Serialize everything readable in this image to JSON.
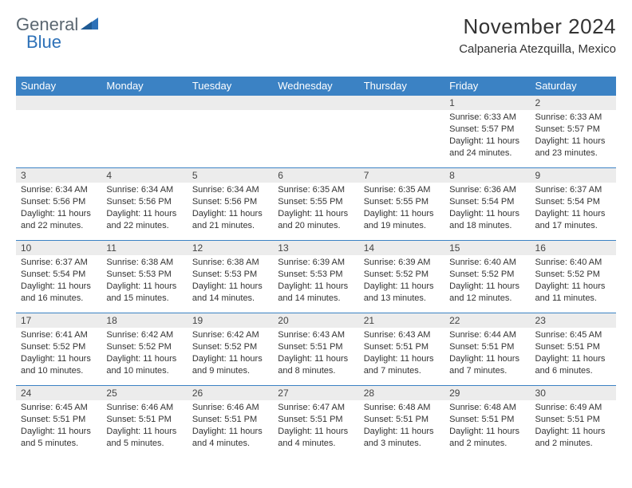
{
  "brand": {
    "word1": "General",
    "word2": "Blue"
  },
  "title": "November 2024",
  "location": "Calpaneria Atezquilla, Mexico",
  "colors": {
    "header_bg": "#3b82c4",
    "header_text": "#ffffff",
    "daynum_bg": "#ececec",
    "grid_line": "#3b82c4",
    "logo_gray": "#5a6670",
    "logo_blue": "#2d71b8",
    "text": "#333333",
    "bg": "#ffffff"
  },
  "day_headers": [
    "Sunday",
    "Monday",
    "Tuesday",
    "Wednesday",
    "Thursday",
    "Friday",
    "Saturday"
  ],
  "weeks": [
    [
      {
        "n": "",
        "sunrise": "",
        "sunset": "",
        "daylight": ""
      },
      {
        "n": "",
        "sunrise": "",
        "sunset": "",
        "daylight": ""
      },
      {
        "n": "",
        "sunrise": "",
        "sunset": "",
        "daylight": ""
      },
      {
        "n": "",
        "sunrise": "",
        "sunset": "",
        "daylight": ""
      },
      {
        "n": "",
        "sunrise": "",
        "sunset": "",
        "daylight": ""
      },
      {
        "n": "1",
        "sunrise": "Sunrise: 6:33 AM",
        "sunset": "Sunset: 5:57 PM",
        "daylight": "Daylight: 11 hours and 24 minutes."
      },
      {
        "n": "2",
        "sunrise": "Sunrise: 6:33 AM",
        "sunset": "Sunset: 5:57 PM",
        "daylight": "Daylight: 11 hours and 23 minutes."
      }
    ],
    [
      {
        "n": "3",
        "sunrise": "Sunrise: 6:34 AM",
        "sunset": "Sunset: 5:56 PM",
        "daylight": "Daylight: 11 hours and 22 minutes."
      },
      {
        "n": "4",
        "sunrise": "Sunrise: 6:34 AM",
        "sunset": "Sunset: 5:56 PM",
        "daylight": "Daylight: 11 hours and 22 minutes."
      },
      {
        "n": "5",
        "sunrise": "Sunrise: 6:34 AM",
        "sunset": "Sunset: 5:56 PM",
        "daylight": "Daylight: 11 hours and 21 minutes."
      },
      {
        "n": "6",
        "sunrise": "Sunrise: 6:35 AM",
        "sunset": "Sunset: 5:55 PM",
        "daylight": "Daylight: 11 hours and 20 minutes."
      },
      {
        "n": "7",
        "sunrise": "Sunrise: 6:35 AM",
        "sunset": "Sunset: 5:55 PM",
        "daylight": "Daylight: 11 hours and 19 minutes."
      },
      {
        "n": "8",
        "sunrise": "Sunrise: 6:36 AM",
        "sunset": "Sunset: 5:54 PM",
        "daylight": "Daylight: 11 hours and 18 minutes."
      },
      {
        "n": "9",
        "sunrise": "Sunrise: 6:37 AM",
        "sunset": "Sunset: 5:54 PM",
        "daylight": "Daylight: 11 hours and 17 minutes."
      }
    ],
    [
      {
        "n": "10",
        "sunrise": "Sunrise: 6:37 AM",
        "sunset": "Sunset: 5:54 PM",
        "daylight": "Daylight: 11 hours and 16 minutes."
      },
      {
        "n": "11",
        "sunrise": "Sunrise: 6:38 AM",
        "sunset": "Sunset: 5:53 PM",
        "daylight": "Daylight: 11 hours and 15 minutes."
      },
      {
        "n": "12",
        "sunrise": "Sunrise: 6:38 AM",
        "sunset": "Sunset: 5:53 PM",
        "daylight": "Daylight: 11 hours and 14 minutes."
      },
      {
        "n": "13",
        "sunrise": "Sunrise: 6:39 AM",
        "sunset": "Sunset: 5:53 PM",
        "daylight": "Daylight: 11 hours and 14 minutes."
      },
      {
        "n": "14",
        "sunrise": "Sunrise: 6:39 AM",
        "sunset": "Sunset: 5:52 PM",
        "daylight": "Daylight: 11 hours and 13 minutes."
      },
      {
        "n": "15",
        "sunrise": "Sunrise: 6:40 AM",
        "sunset": "Sunset: 5:52 PM",
        "daylight": "Daylight: 11 hours and 12 minutes."
      },
      {
        "n": "16",
        "sunrise": "Sunrise: 6:40 AM",
        "sunset": "Sunset: 5:52 PM",
        "daylight": "Daylight: 11 hours and 11 minutes."
      }
    ],
    [
      {
        "n": "17",
        "sunrise": "Sunrise: 6:41 AM",
        "sunset": "Sunset: 5:52 PM",
        "daylight": "Daylight: 11 hours and 10 minutes."
      },
      {
        "n": "18",
        "sunrise": "Sunrise: 6:42 AM",
        "sunset": "Sunset: 5:52 PM",
        "daylight": "Daylight: 11 hours and 10 minutes."
      },
      {
        "n": "19",
        "sunrise": "Sunrise: 6:42 AM",
        "sunset": "Sunset: 5:52 PM",
        "daylight": "Daylight: 11 hours and 9 minutes."
      },
      {
        "n": "20",
        "sunrise": "Sunrise: 6:43 AM",
        "sunset": "Sunset: 5:51 PM",
        "daylight": "Daylight: 11 hours and 8 minutes."
      },
      {
        "n": "21",
        "sunrise": "Sunrise: 6:43 AM",
        "sunset": "Sunset: 5:51 PM",
        "daylight": "Daylight: 11 hours and 7 minutes."
      },
      {
        "n": "22",
        "sunrise": "Sunrise: 6:44 AM",
        "sunset": "Sunset: 5:51 PM",
        "daylight": "Daylight: 11 hours and 7 minutes."
      },
      {
        "n": "23",
        "sunrise": "Sunrise: 6:45 AM",
        "sunset": "Sunset: 5:51 PM",
        "daylight": "Daylight: 11 hours and 6 minutes."
      }
    ],
    [
      {
        "n": "24",
        "sunrise": "Sunrise: 6:45 AM",
        "sunset": "Sunset: 5:51 PM",
        "daylight": "Daylight: 11 hours and 5 minutes."
      },
      {
        "n": "25",
        "sunrise": "Sunrise: 6:46 AM",
        "sunset": "Sunset: 5:51 PM",
        "daylight": "Daylight: 11 hours and 5 minutes."
      },
      {
        "n": "26",
        "sunrise": "Sunrise: 6:46 AM",
        "sunset": "Sunset: 5:51 PM",
        "daylight": "Daylight: 11 hours and 4 minutes."
      },
      {
        "n": "27",
        "sunrise": "Sunrise: 6:47 AM",
        "sunset": "Sunset: 5:51 PM",
        "daylight": "Daylight: 11 hours and 4 minutes."
      },
      {
        "n": "28",
        "sunrise": "Sunrise: 6:48 AM",
        "sunset": "Sunset: 5:51 PM",
        "daylight": "Daylight: 11 hours and 3 minutes."
      },
      {
        "n": "29",
        "sunrise": "Sunrise: 6:48 AM",
        "sunset": "Sunset: 5:51 PM",
        "daylight": "Daylight: 11 hours and 2 minutes."
      },
      {
        "n": "30",
        "sunrise": "Sunrise: 6:49 AM",
        "sunset": "Sunset: 5:51 PM",
        "daylight": "Daylight: 11 hours and 2 minutes."
      }
    ]
  ]
}
